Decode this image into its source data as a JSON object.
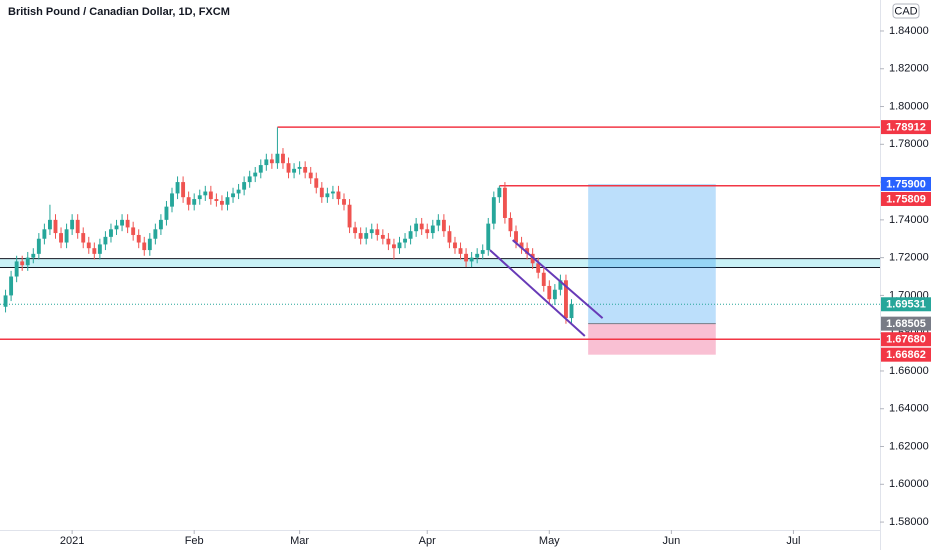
{
  "chart_data": {
    "type": "candlestick",
    "title": "British Pound / Canadian Dollar, 1D, FXCM",
    "currency": "CAD",
    "up_color": "#26a69a",
    "down_color": "#ef5350",
    "open": [
      1.694,
      1.7,
      1.71,
      1.718,
      1.716,
      1.72,
      1.722,
      1.73,
      1.735,
      1.74,
      1.733,
      1.728,
      1.735,
      1.74,
      1.733,
      1.728,
      1.725,
      1.722,
      1.727,
      1.731,
      1.735,
      1.737,
      1.74,
      1.736,
      1.732,
      1.728,
      1.724,
      1.73,
      1.735,
      1.74,
      1.747,
      1.754,
      1.76,
      1.752,
      1.748,
      1.751,
      1.753,
      1.755,
      1.751,
      1.75,
      1.748,
      1.752,
      1.754,
      1.756,
      1.76,
      1.763,
      1.765,
      1.769,
      1.772,
      1.77,
      1.775,
      1.77,
      1.765,
      1.767,
      1.768,
      1.765,
      1.762,
      1.757,
      1.752,
      1.754,
      1.755,
      1.751,
      1.748,
      1.736,
      1.733,
      1.73,
      1.733,
      1.735,
      1.732,
      1.73,
      1.727,
      1.725,
      1.728,
      1.73,
      1.734,
      1.738,
      1.735,
      1.733,
      1.737,
      1.74,
      1.734,
      1.728,
      1.725,
      1.722,
      1.718,
      1.72,
      1.722,
      1.724,
      1.738,
      1.752,
      1.757,
      1.741,
      1.734,
      1.728,
      1.725,
      1.722,
      1.717,
      1.712,
      1.705,
      1.698,
      1.703,
      1.708,
      1.688
    ],
    "high": [
      1.703,
      1.713,
      1.721,
      1.721,
      1.723,
      1.725,
      1.733,
      1.738,
      1.748,
      1.743,
      1.736,
      1.738,
      1.743,
      1.743,
      1.736,
      1.731,
      1.728,
      1.73,
      1.734,
      1.738,
      1.74,
      1.743,
      1.743,
      1.739,
      1.735,
      1.731,
      1.733,
      1.738,
      1.743,
      1.75,
      1.757,
      1.763,
      1.763,
      1.755,
      1.754,
      1.756,
      1.758,
      1.758,
      1.754,
      1.753,
      1.755,
      1.757,
      1.759,
      1.763,
      1.766,
      1.768,
      1.772,
      1.775,
      1.775,
      1.789,
      1.778,
      1.773,
      1.77,
      1.771,
      1.771,
      1.768,
      1.765,
      1.76,
      1.757,
      1.758,
      1.758,
      1.754,
      1.751,
      1.739,
      1.736,
      1.736,
      1.738,
      1.738,
      1.735,
      1.733,
      1.73,
      1.731,
      1.733,
      1.737,
      1.741,
      1.741,
      1.738,
      1.74,
      1.743,
      1.743,
      1.737,
      1.731,
      1.728,
      1.725,
      1.723,
      1.725,
      1.727,
      1.741,
      1.755,
      1.758,
      1.76,
      1.744,
      1.737,
      1.731,
      1.728,
      1.725,
      1.72,
      1.715,
      1.708,
      1.706,
      1.711,
      1.711,
      1.698
    ],
    "low": [
      1.691,
      1.697,
      1.707,
      1.713,
      1.713,
      1.717,
      1.719,
      1.727,
      1.732,
      1.73,
      1.725,
      1.725,
      1.732,
      1.73,
      1.725,
      1.722,
      1.719,
      1.719,
      1.724,
      1.728,
      1.732,
      1.734,
      1.733,
      1.729,
      1.725,
      1.721,
      1.721,
      1.727,
      1.732,
      1.737,
      1.744,
      1.751,
      1.749,
      1.745,
      1.745,
      1.748,
      1.75,
      1.748,
      1.747,
      1.745,
      1.745,
      1.749,
      1.751,
      1.753,
      1.757,
      1.76,
      1.762,
      1.766,
      1.767,
      1.767,
      1.767,
      1.762,
      1.762,
      1.764,
      1.762,
      1.759,
      1.754,
      1.749,
      1.749,
      1.751,
      1.748,
      1.745,
      1.733,
      1.73,
      1.727,
      1.727,
      1.73,
      1.729,
      1.727,
      1.724,
      1.719,
      1.722,
      1.725,
      1.727,
      1.731,
      1.732,
      1.73,
      1.73,
      1.734,
      1.731,
      1.725,
      1.722,
      1.719,
      1.715,
      1.715,
      1.717,
      1.719,
      1.721,
      1.735,
      1.749,
      1.738,
      1.731,
      1.725,
      1.722,
      1.719,
      1.714,
      1.709,
      1.702,
      1.695,
      1.695,
      1.7,
      1.685,
      1.685
    ],
    "close": [
      1.7,
      1.71,
      1.718,
      1.716,
      1.72,
      1.722,
      1.73,
      1.735,
      1.74,
      1.733,
      1.728,
      1.735,
      1.74,
      1.733,
      1.728,
      1.725,
      1.722,
      1.727,
      1.731,
      1.735,
      1.737,
      1.74,
      1.736,
      1.732,
      1.728,
      1.724,
      1.73,
      1.735,
      1.74,
      1.747,
      1.754,
      1.76,
      1.752,
      1.748,
      1.751,
      1.753,
      1.755,
      1.751,
      1.75,
      1.748,
      1.752,
      1.754,
      1.756,
      1.76,
      1.763,
      1.765,
      1.769,
      1.772,
      1.77,
      1.775,
      1.77,
      1.765,
      1.767,
      1.768,
      1.765,
      1.762,
      1.757,
      1.752,
      1.754,
      1.755,
      1.751,
      1.748,
      1.736,
      1.733,
      1.73,
      1.733,
      1.735,
      1.732,
      1.73,
      1.727,
      1.725,
      1.728,
      1.73,
      1.734,
      1.738,
      1.735,
      1.733,
      1.737,
      1.74,
      1.734,
      1.728,
      1.725,
      1.722,
      1.718,
      1.72,
      1.722,
      1.724,
      1.738,
      1.752,
      1.757,
      1.741,
      1.734,
      1.728,
      1.725,
      1.722,
      1.717,
      1.712,
      1.705,
      1.698,
      1.703,
      1.708,
      1.688,
      1.69531
    ],
    "xlim": [
      -1,
      157.6
    ],
    "xticks": [
      {
        "value": 12,
        "label": "2021"
      },
      {
        "value": 34,
        "label": "Feb"
      },
      {
        "value": 53,
        "label": "Mar"
      },
      {
        "value": 76,
        "label": "Apr"
      },
      {
        "value": 98,
        "label": "May"
      },
      {
        "value": 120,
        "label": "Jun"
      },
      {
        "value": 142,
        "label": "Jul"
      }
    ],
    "ylim": [
      1.5758,
      1.8564
    ],
    "yticks": [
      {
        "value": 1.58,
        "label": "1.58000"
      },
      {
        "value": 1.6,
        "label": "1.60000"
      },
      {
        "value": 1.62,
        "label": "1.62000"
      },
      {
        "value": 1.64,
        "label": "1.64000"
      },
      {
        "value": 1.66,
        "label": "1.66000"
      },
      {
        "value": 1.68,
        "label": "1.68000"
      },
      {
        "value": 1.7,
        "label": "1.70000"
      },
      {
        "value": 1.72,
        "label": "1.72000"
      },
      {
        "value": 1.74,
        "label": "1.74000"
      },
      {
        "value": 1.76,
        "label": "1.76000"
      },
      {
        "value": 1.78,
        "label": "1.78000"
      },
      {
        "value": 1.8,
        "label": "1.80000"
      },
      {
        "value": 1.82,
        "label": "1.82000"
      },
      {
        "value": 1.84,
        "label": "1.84000"
      }
    ],
    "levels": [
      {
        "price": 1.78912,
        "color": "#f23645",
        "x_start": 49
      },
      {
        "price": 1.75809,
        "color": "#f23645",
        "x_start": 89
      },
      {
        "price": {
          "value": 1.6768,
          "label": "1.67680"
        },
        "color": "#f23645"
      }
    ],
    "zone": {
      "low": 1.7148,
      "high": 1.7195,
      "color": "#b2ebf2"
    },
    "position": {
      "x": [
        105,
        128
      ],
      "entry": 1.68505,
      "target": {
        "value": 1.759,
        "label": "1.75900"
      },
      "stop": 1.66862
    },
    "channel_color": "#673ab7",
    "channel": [
      {
        "x": [
          91.4,
          107.6
        ],
        "y": [
          1.7293,
          1.688
        ]
      },
      {
        "x": [
          87.3,
          104.4
        ],
        "y": [
          1.724,
          1.6785
        ]
      }
    ]
  }
}
